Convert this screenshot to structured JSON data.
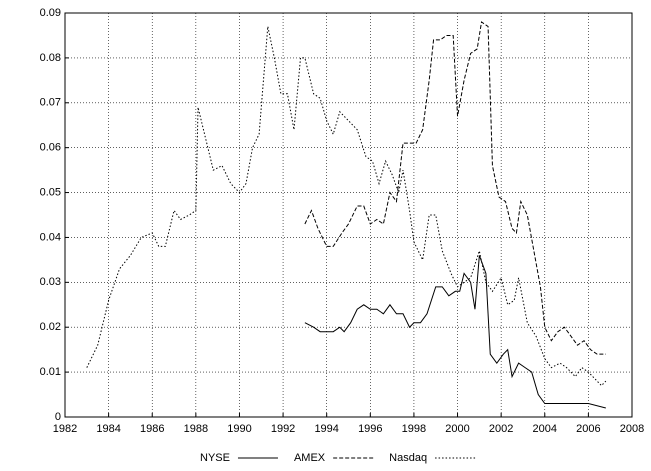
{
  "chart_data": {
    "type": "line",
    "xlim": [
      1982,
      2008
    ],
    "xticks": [
      1982,
      1984,
      1986,
      1988,
      1990,
      1992,
      1994,
      1996,
      1998,
      2000,
      2002,
      2004,
      2006,
      2008
    ],
    "ylim": [
      0,
      0.09
    ],
    "yticks": [
      0,
      0.01,
      0.02,
      0.03,
      0.04,
      0.05,
      0.06,
      0.07,
      0.08,
      0.09
    ],
    "grid": true,
    "legend": "bottom",
    "series": [
      {
        "name": "NYSE",
        "color": "#000000",
        "style": "solid",
        "x": [
          1993.0,
          1993.4,
          1993.7,
          1994.0,
          1994.3,
          1994.6,
          1994.8,
          1995.1,
          1995.4,
          1995.7,
          1996.0,
          1996.3,
          1996.6,
          1996.9,
          1997.2,
          1997.5,
          1997.8,
          1998.0,
          1998.3,
          1998.6,
          1999.0,
          1999.3,
          1999.6,
          1999.9,
          2000.1,
          2000.3,
          2000.6,
          2000.8,
          2001.0,
          2001.3,
          2001.5,
          2001.8,
          2002.1,
          2002.3,
          2002.5,
          2002.8,
          2003.1,
          2003.4,
          2003.7,
          2004.0,
          2004.3,
          2004.6,
          2005.0,
          2005.5,
          2006.0,
          2006.8
        ],
        "values": [
          0.021,
          0.02,
          0.019,
          0.019,
          0.019,
          0.02,
          0.019,
          0.021,
          0.024,
          0.025,
          0.024,
          0.024,
          0.023,
          0.025,
          0.023,
          0.023,
          0.02,
          0.021,
          0.021,
          0.023,
          0.029,
          0.029,
          0.027,
          0.028,
          0.028,
          0.032,
          0.03,
          0.024,
          0.036,
          0.032,
          0.014,
          0.012,
          0.014,
          0.015,
          0.009,
          0.012,
          0.011,
          0.01,
          0.005,
          0.003,
          0.003,
          0.003,
          0.003,
          0.003,
          0.003,
          0.002
        ]
      },
      {
        "name": "AMEX",
        "color": "#000000",
        "style": "dashed",
        "x": [
          1993.0,
          1993.3,
          1993.6,
          1994.0,
          1994.3,
          1994.7,
          1995.0,
          1995.4,
          1995.7,
          1996.0,
          1996.3,
          1996.6,
          1996.9,
          1997.2,
          1997.5,
          1997.8,
          1998.1,
          1998.4,
          1998.7,
          1998.9,
          1999.2,
          1999.5,
          1999.8,
          2000.0,
          2000.3,
          2000.6,
          2000.9,
          2001.1,
          2001.4,
          2001.6,
          2001.9,
          2002.2,
          2002.5,
          2002.7,
          2002.9,
          2003.2,
          2003.5,
          2003.8,
          2004.0,
          2004.3,
          2004.6,
          2004.9,
          2005.2,
          2005.5,
          2005.8,
          2006.1,
          2006.4,
          2006.8
        ],
        "values": [
          0.043,
          0.046,
          0.042,
          0.038,
          0.038,
          0.041,
          0.043,
          0.047,
          0.047,
          0.043,
          0.044,
          0.043,
          0.05,
          0.048,
          0.061,
          0.061,
          0.061,
          0.064,
          0.075,
          0.084,
          0.084,
          0.085,
          0.085,
          0.067,
          0.075,
          0.081,
          0.082,
          0.088,
          0.087,
          0.056,
          0.049,
          0.048,
          0.042,
          0.041,
          0.048,
          0.045,
          0.037,
          0.029,
          0.02,
          0.017,
          0.019,
          0.02,
          0.018,
          0.016,
          0.017,
          0.015,
          0.014,
          0.014
        ]
      },
      {
        "name": "Nasdaq",
        "color": "#000000",
        "style": "dotted",
        "x": [
          1983.0,
          1983.5,
          1984.0,
          1984.5,
          1985.0,
          1985.5,
          1986.0,
          1986.3,
          1986.6,
          1987.0,
          1987.3,
          1987.7,
          1988.0,
          1988.1,
          1988.5,
          1988.8,
          1989.2,
          1989.6,
          1990.0,
          1990.3,
          1990.6,
          1990.9,
          1991.1,
          1991.3,
          1991.6,
          1991.9,
          1992.2,
          1992.5,
          1992.8,
          1993.0,
          1993.4,
          1993.7,
          1994.0,
          1994.3,
          1994.6,
          1995.0,
          1995.4,
          1995.8,
          1996.1,
          1996.4,
          1996.7,
          1997.0,
          1997.3,
          1997.5,
          1997.8,
          1998.0,
          1998.4,
          1998.7,
          1999.0,
          1999.3,
          1999.7,
          2000.0,
          2000.3,
          2000.6,
          2001.0,
          2001.3,
          2001.6,
          2002.0,
          2002.3,
          2002.6,
          2002.8,
          2003.2,
          2003.6,
          2004.0,
          2004.3,
          2004.7,
          2005.0,
          2005.4,
          2005.7,
          2006.0,
          2006.4,
          2006.6,
          2006.8
        ],
        "values": [
          0.011,
          0.016,
          0.026,
          0.033,
          0.036,
          0.04,
          0.041,
          0.038,
          0.038,
          0.046,
          0.044,
          0.045,
          0.046,
          0.069,
          0.061,
          0.055,
          0.056,
          0.052,
          0.05,
          0.052,
          0.06,
          0.063,
          0.075,
          0.087,
          0.08,
          0.072,
          0.072,
          0.064,
          0.08,
          0.08,
          0.072,
          0.071,
          0.066,
          0.063,
          0.068,
          0.066,
          0.064,
          0.058,
          0.057,
          0.052,
          0.057,
          0.054,
          0.05,
          0.055,
          0.046,
          0.039,
          0.035,
          0.045,
          0.045,
          0.037,
          0.032,
          0.029,
          0.03,
          0.031,
          0.037,
          0.03,
          0.028,
          0.031,
          0.025,
          0.026,
          0.031,
          0.021,
          0.018,
          0.013,
          0.011,
          0.012,
          0.011,
          0.009,
          0.011,
          0.01,
          0.008,
          0.007,
          0.008
        ]
      }
    ]
  }
}
